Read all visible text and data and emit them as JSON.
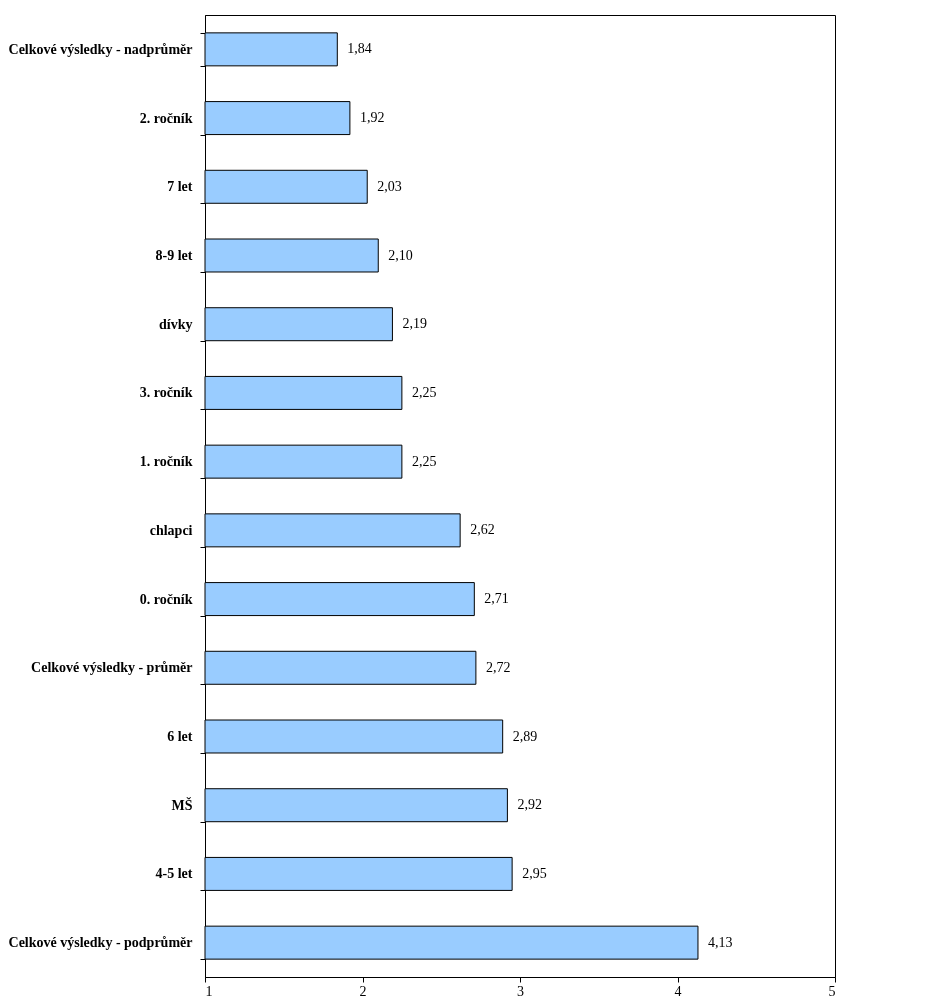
{
  "chart_data": {
    "type": "bar",
    "orientation": "horizontal",
    "categories": [
      "Celkové výsledky - nadprůměr",
      "2. ročník",
      "7 let",
      "8-9 let",
      "dívky",
      "3. ročník",
      "1. ročník",
      "chlapci",
      "0. ročník",
      "Celkové výsledky - průměr",
      "6 let",
      "MŠ",
      "4-5 let",
      "Celkové výsledky - podprůměr"
    ],
    "values": [
      1.84,
      1.92,
      2.03,
      2.1,
      2.19,
      2.25,
      2.25,
      2.62,
      2.71,
      2.72,
      2.89,
      2.92,
      2.95,
      4.13
    ],
    "value_labels": [
      "1,84",
      "1,92",
      "2,03",
      "2,10",
      "2,19",
      "2,25",
      "2,25",
      "2,62",
      "2,71",
      "2,72",
      "2,89",
      "2,92",
      "2,95",
      "4,13"
    ],
    "color": "#99ccff",
    "xlim": [
      1,
      5
    ],
    "xticks": [
      1,
      2,
      3,
      4,
      5
    ],
    "grid": false
  }
}
